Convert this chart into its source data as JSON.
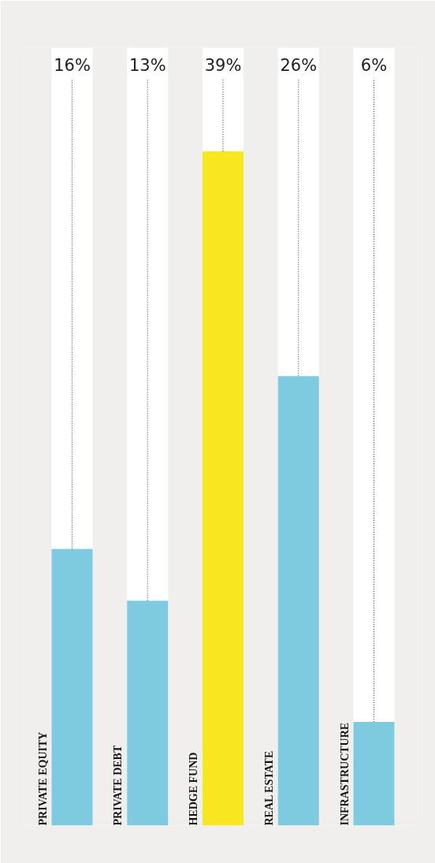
{
  "chart_data": {
    "type": "bar",
    "categories": [
      "PRIVATE EQUITY",
      "PRIVATE DEBT",
      "HEDGE FUND",
      "REAL ESTATE",
      "INFRASTRUCTURE"
    ],
    "values": [
      16,
      13,
      39,
      26,
      6
    ],
    "colors": [
      "#7ecae0",
      "#7ecae0",
      "#f7e620",
      "#7ecae0",
      "#7ecae0"
    ],
    "value_labels": [
      "16%",
      "13%",
      "39%",
      "26%",
      "6%"
    ],
    "ylim": [
      0,
      45
    ],
    "tick_labels": false,
    "grid": false
  }
}
